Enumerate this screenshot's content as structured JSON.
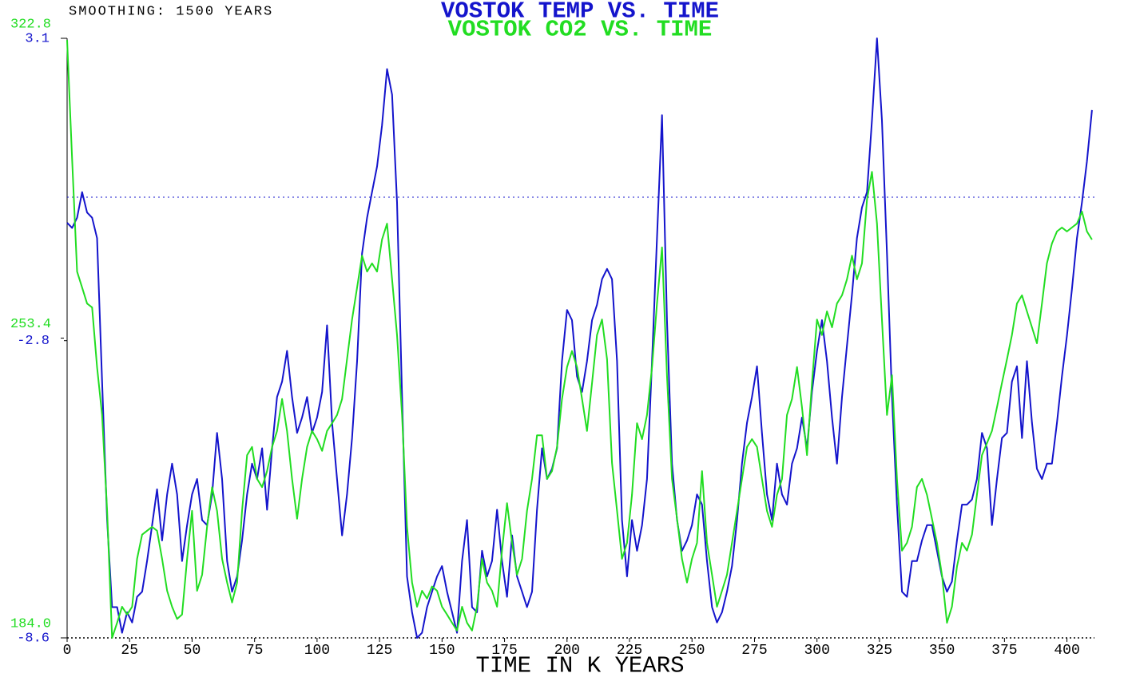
{
  "chart_data": {
    "type": "line",
    "note_text": "SMOOTHING: 1500 YEARS",
    "title": "VOSTOK TEMP VS. TIME",
    "subtitle": "VOSTOK  CO2 VS. TIME",
    "x_label": "TIME IN K YEARS",
    "xlim": [
      0,
      411
    ],
    "xticks": [
      0,
      25,
      50,
      75,
      100,
      125,
      150,
      175,
      200,
      225,
      250,
      275,
      300,
      325,
      350,
      375,
      400
    ],
    "ylim": [
      -8.6,
      3.1
    ],
    "yticks": [
      -8.6,
      -2.8,
      3.1
    ],
    "y2lim": [
      184,
      322.8
    ],
    "y2ticks": [
      {
        "value": 184,
        "label": "184.0"
      },
      253.4,
      322.8
    ],
    "reference_line": 0,
    "x": [
      0,
      2,
      4,
      6,
      8,
      10,
      12,
      14,
      16,
      18,
      20,
      22,
      24,
      26,
      28,
      30,
      32,
      34,
      36,
      38,
      40,
      42,
      44,
      46,
      48,
      50,
      52,
      54,
      56,
      58,
      60,
      62,
      64,
      66,
      68,
      70,
      72,
      74,
      76,
      78,
      80,
      82,
      84,
      86,
      88,
      90,
      92,
      94,
      96,
      98,
      100,
      102,
      104,
      106,
      108,
      110,
      112,
      114,
      116,
      118,
      120,
      122,
      124,
      126,
      128,
      130,
      132,
      134,
      136,
      138,
      140,
      142,
      144,
      146,
      148,
      150,
      152,
      154,
      156,
      158,
      160,
      162,
      164,
      166,
      168,
      170,
      172,
      174,
      176,
      178,
      180,
      182,
      184,
      186,
      188,
      190,
      192,
      194,
      196,
      198,
      200,
      202,
      204,
      206,
      208,
      210,
      212,
      214,
      216,
      218,
      220,
      222,
      224,
      226,
      228,
      230,
      232,
      234,
      236,
      238,
      240,
      242,
      244,
      246,
      248,
      250,
      252,
      254,
      256,
      258,
      260,
      262,
      264,
      266,
      268,
      270,
      272,
      274,
      276,
      278,
      280,
      282,
      284,
      286,
      288,
      290,
      292,
      294,
      296,
      298,
      300,
      302,
      304,
      306,
      308,
      310,
      312,
      314,
      316,
      318,
      320,
      322,
      324,
      326,
      328,
      330,
      332,
      334,
      336,
      338,
      340,
      342,
      344,
      346,
      348,
      350,
      352,
      354,
      356,
      358,
      360,
      362,
      364,
      366,
      368,
      370,
      372,
      374,
      376,
      378,
      380,
      382,
      384,
      386,
      388,
      390,
      392,
      394,
      396,
      398,
      400,
      402,
      404,
      406,
      408,
      410
    ],
    "series": [
      {
        "name": "TEMP",
        "color": "#1414cc",
        "values": [
          -0.5,
          -0.6,
          -0.4,
          0.1,
          -0.3,
          -0.4,
          -0.8,
          -3.6,
          -6.3,
          -8.0,
          -8.0,
          -8.5,
          -8.1,
          -8.3,
          -7.8,
          -7.7,
          -7.1,
          -6.4,
          -5.7,
          -6.7,
          -5.8,
          -5.2,
          -5.8,
          -7.1,
          -6.4,
          -5.8,
          -5.5,
          -6.3,
          -6.4,
          -5.8,
          -4.6,
          -5.5,
          -7.1,
          -7.7,
          -7.4,
          -6.7,
          -5.8,
          -5.2,
          -5.5,
          -4.9,
          -6.1,
          -4.9,
          -3.9,
          -3.6,
          -3.0,
          -3.9,
          -4.6,
          -4.3,
          -3.9,
          -4.6,
          -4.3,
          -3.8,
          -2.5,
          -4.4,
          -5.5,
          -6.6,
          -5.8,
          -4.7,
          -3.2,
          -1.1,
          -0.4,
          0.1,
          0.6,
          1.4,
          2.5,
          2.0,
          -0.1,
          -3.9,
          -7.4,
          -8.1,
          -8.6,
          -8.5,
          -8.0,
          -7.7,
          -7.4,
          -7.2,
          -7.7,
          -8.1,
          -8.5,
          -7.1,
          -6.3,
          -8.0,
          -8.1,
          -6.9,
          -7.4,
          -7.1,
          -6.1,
          -7.1,
          -7.8,
          -6.6,
          -7.4,
          -7.7,
          -8.0,
          -7.7,
          -6.1,
          -4.9,
          -5.5,
          -5.3,
          -4.9,
          -3.2,
          -2.2,
          -2.4,
          -3.5,
          -3.8,
          -3.2,
          -2.4,
          -2.1,
          -1.6,
          -1.4,
          -1.6,
          -3.2,
          -6.3,
          -7.4,
          -6.3,
          -6.9,
          -6.4,
          -5.5,
          -3.2,
          -0.8,
          1.6,
          -2.4,
          -5.2,
          -6.3,
          -6.9,
          -6.7,
          -6.4,
          -5.8,
          -6.0,
          -7.1,
          -8.0,
          -8.3,
          -8.1,
          -7.7,
          -7.2,
          -6.3,
          -5.2,
          -4.4,
          -3.9,
          -3.3,
          -4.6,
          -5.8,
          -6.3,
          -5.2,
          -5.8,
          -6.0,
          -5.2,
          -4.9,
          -4.3,
          -4.9,
          -3.8,
          -3.0,
          -2.4,
          -3.2,
          -4.3,
          -5.2,
          -3.9,
          -2.9,
          -1.9,
          -0.8,
          -0.2,
          0.1,
          1.5,
          3.1,
          1.5,
          -1.1,
          -3.9,
          -6.0,
          -7.7,
          -7.8,
          -7.1,
          -7.1,
          -6.7,
          -6.4,
          -6.4,
          -6.9,
          -7.4,
          -7.7,
          -7.5,
          -6.7,
          -6.0,
          -6.0,
          -5.9,
          -5.5,
          -4.6,
          -4.9,
          -6.4,
          -5.5,
          -4.7,
          -4.6,
          -3.6,
          -3.3,
          -4.7,
          -3.2,
          -4.4,
          -5.3,
          -5.5,
          -5.2,
          -5.2,
          -4.4,
          -3.5,
          -2.7,
          -1.8,
          -0.8,
          -0.1,
          0.7,
          1.7
        ]
      },
      {
        "name": "CO2",
        "color": "#22dd22",
        "axis": "y2",
        "values": [
          322.4,
          294.7,
          268.8,
          265.1,
          261.4,
          260.5,
          246.7,
          235.6,
          213.4,
          184.0,
          187.5,
          191.2,
          189.4,
          191.2,
          202.3,
          207.9,
          208.8,
          209.7,
          208.8,
          202.3,
          194.9,
          191.2,
          188.4,
          189.4,
          202.3,
          213.4,
          194.9,
          198.6,
          209.7,
          218.9,
          213.4,
          202.3,
          196.8,
          192.2,
          196.8,
          213.4,
          226.3,
          228.2,
          220.8,
          218.9,
          222.6,
          228.2,
          231.9,
          239.3,
          231.9,
          220.8,
          211.6,
          220.8,
          228.2,
          231.9,
          230.0,
          227.3,
          231.9,
          233.7,
          235.6,
          239.3,
          248.5,
          257.7,
          265.1,
          272.5,
          268.8,
          270.7,
          268.8,
          276.2,
          279.9,
          267.0,
          254.1,
          235.6,
          209.7,
          196.8,
          191.2,
          194.9,
          193.1,
          195.9,
          194.9,
          191.2,
          189.4,
          187.5,
          185.7,
          191.2,
          187.5,
          185.7,
          191.2,
          202.3,
          196.8,
          194.9,
          191.2,
          204.2,
          215.2,
          206.0,
          198.6,
          202.3,
          213.4,
          220.8,
          230.9,
          230.9,
          220.8,
          222.6,
          228.2,
          239.3,
          246.7,
          250.4,
          246.7,
          239.3,
          231.9,
          243.0,
          254.1,
          257.7,
          248.5,
          224.5,
          213.4,
          202.3,
          206.0,
          217.1,
          233.7,
          230.0,
          235.6,
          246.7,
          261.4,
          274.4,
          244.8,
          220.8,
          211.6,
          202.3,
          196.8,
          202.3,
          206.0,
          222.6,
          206.0,
          198.6,
          191.2,
          194.9,
          198.6,
          206.0,
          213.4,
          220.8,
          228.2,
          230.0,
          228.2,
          220.8,
          213.4,
          209.7,
          217.1,
          220.8,
          235.6,
          239.3,
          246.7,
          237.4,
          226.3,
          243.0,
          257.7,
          254.1,
          259.6,
          255.9,
          261.4,
          263.3,
          267.0,
          272.5,
          267.0,
          270.7,
          285.5,
          291.9,
          279.9,
          257.7,
          235.6,
          244.8,
          220.8,
          204.2,
          206.0,
          209.7,
          218.9,
          220.8,
          217.1,
          211.6,
          206.0,
          198.6,
          187.5,
          191.2,
          200.5,
          206.0,
          204.2,
          207.9,
          217.1,
          226.3,
          229.1,
          231.9,
          237.4,
          243.0,
          248.5,
          254.1,
          261.4,
          263.3,
          259.6,
          255.9,
          252.2,
          261.4,
          270.7,
          275.3,
          278.1,
          279.0,
          278.1,
          279.0,
          279.9,
          282.7,
          278.1,
          276.2
        ]
      }
    ]
  }
}
